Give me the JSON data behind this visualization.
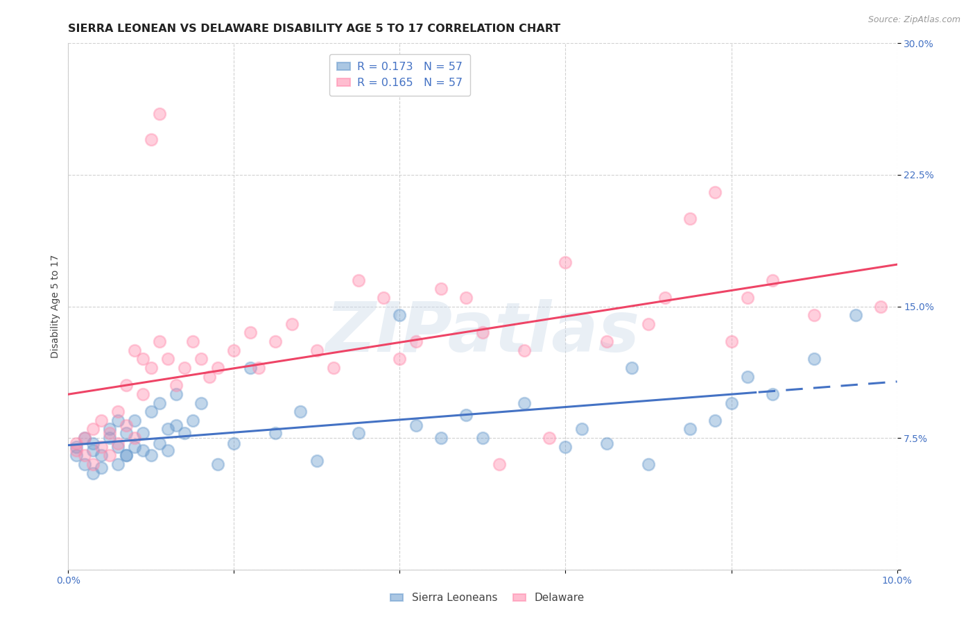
{
  "title": "SIERRA LEONEAN VS DELAWARE DISABILITY AGE 5 TO 17 CORRELATION CHART",
  "source": "Source: ZipAtlas.com",
  "ylabel": "Disability Age 5 to 17",
  "xlim": [
    0.0,
    0.1
  ],
  "ylim": [
    0.0,
    0.3
  ],
  "xtick_positions": [
    0.0,
    0.02,
    0.04,
    0.06,
    0.08,
    0.1
  ],
  "xticklabels": [
    "0.0%",
    "",
    "",
    "",
    "",
    "10.0%"
  ],
  "ytick_positions": [
    0.0,
    0.075,
    0.15,
    0.225,
    0.3
  ],
  "yticklabels": [
    "",
    "7.5%",
    "15.0%",
    "22.5%",
    "30.0%"
  ],
  "ytick_color": "#4472c4",
  "xtick_color": "#4472c4",
  "grid_color": "#cccccc",
  "background_color": "#ffffff",
  "sierra_color": "#6699cc",
  "delaware_color": "#ff88aa",
  "sierra_line_color": "#4472c4",
  "delaware_line_color": "#ee4466",
  "watermark": "ZIPatlas",
  "title_fontsize": 11.5,
  "axis_label_fontsize": 10,
  "tick_fontsize": 10,
  "legend_label_blue": "R = 0.173   N = 57",
  "legend_label_pink": "R = 0.165   N = 57",
  "sierra_x": [
    0.001,
    0.001,
    0.002,
    0.002,
    0.003,
    0.003,
    0.003,
    0.004,
    0.004,
    0.005,
    0.005,
    0.006,
    0.006,
    0.006,
    0.007,
    0.007,
    0.007,
    0.008,
    0.008,
    0.009,
    0.009,
    0.01,
    0.01,
    0.011,
    0.011,
    0.012,
    0.012,
    0.013,
    0.013,
    0.014,
    0.015,
    0.016,
    0.018,
    0.02,
    0.022,
    0.025,
    0.028,
    0.03,
    0.035,
    0.04,
    0.042,
    0.045,
    0.048,
    0.05,
    0.055,
    0.06,
    0.062,
    0.065,
    0.068,
    0.07,
    0.075,
    0.078,
    0.08,
    0.082,
    0.085,
    0.09,
    0.095
  ],
  "sierra_y": [
    0.065,
    0.07,
    0.06,
    0.075,
    0.055,
    0.068,
    0.072,
    0.058,
    0.065,
    0.08,
    0.075,
    0.06,
    0.085,
    0.07,
    0.065,
    0.078,
    0.065,
    0.085,
    0.07,
    0.068,
    0.078,
    0.065,
    0.09,
    0.072,
    0.095,
    0.08,
    0.068,
    0.1,
    0.082,
    0.078,
    0.085,
    0.095,
    0.06,
    0.072,
    0.115,
    0.078,
    0.09,
    0.062,
    0.078,
    0.145,
    0.082,
    0.075,
    0.088,
    0.075,
    0.095,
    0.07,
    0.08,
    0.072,
    0.115,
    0.06,
    0.08,
    0.085,
    0.095,
    0.11,
    0.1,
    0.12,
    0.145
  ],
  "delaware_x": [
    0.001,
    0.001,
    0.002,
    0.002,
    0.003,
    0.003,
    0.004,
    0.004,
    0.005,
    0.005,
    0.006,
    0.006,
    0.007,
    0.007,
    0.008,
    0.008,
    0.009,
    0.009,
    0.01,
    0.01,
    0.011,
    0.011,
    0.012,
    0.013,
    0.014,
    0.015,
    0.016,
    0.017,
    0.018,
    0.02,
    0.022,
    0.023,
    0.025,
    0.027,
    0.03,
    0.032,
    0.035,
    0.038,
    0.04,
    0.042,
    0.045,
    0.048,
    0.05,
    0.052,
    0.055,
    0.058,
    0.06,
    0.065,
    0.07,
    0.072,
    0.075,
    0.078,
    0.08,
    0.082,
    0.085,
    0.09,
    0.098
  ],
  "delaware_y": [
    0.068,
    0.072,
    0.075,
    0.065,
    0.08,
    0.06,
    0.07,
    0.085,
    0.078,
    0.065,
    0.09,
    0.072,
    0.105,
    0.082,
    0.075,
    0.125,
    0.1,
    0.12,
    0.115,
    0.245,
    0.26,
    0.13,
    0.12,
    0.105,
    0.115,
    0.13,
    0.12,
    0.11,
    0.115,
    0.125,
    0.135,
    0.115,
    0.13,
    0.14,
    0.125,
    0.115,
    0.165,
    0.155,
    0.12,
    0.13,
    0.16,
    0.155,
    0.135,
    0.06,
    0.125,
    0.075,
    0.175,
    0.13,
    0.14,
    0.155,
    0.2,
    0.215,
    0.13,
    0.155,
    0.165,
    0.145,
    0.15
  ]
}
